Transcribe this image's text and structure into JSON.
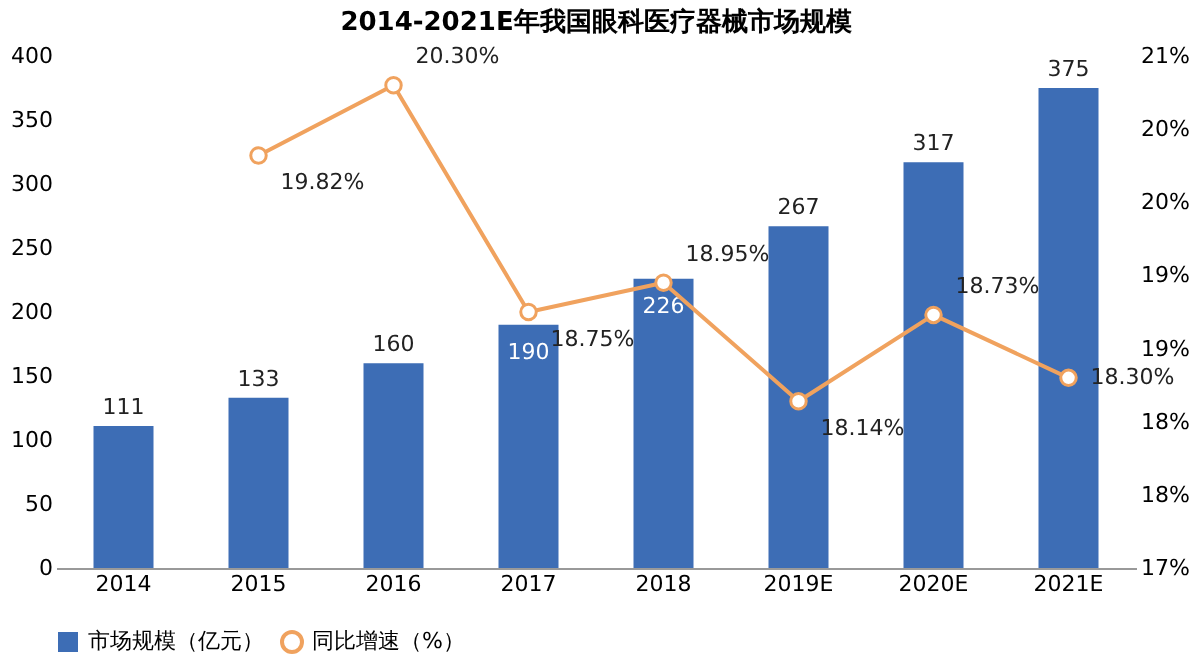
{
  "chart_data": {
    "type": "bar",
    "title": "2014-2021E年我国眼科医疗器械市场规模",
    "categories": [
      "2014",
      "2015",
      "2016",
      "2017",
      "2018",
      "2019E",
      "2020E",
      "2021E"
    ],
    "series": [
      {
        "name": "市场规模（亿元）",
        "color": "#3d6db5",
        "values": [
          111,
          133,
          160,
          190,
          226,
          267,
          317,
          375
        ],
        "data_labels": true
      },
      {
        "name": "同比增速（%）",
        "type": "line",
        "axis": "y2",
        "color": "#f0a25e",
        "marker": "circle",
        "values": [
          null,
          19.82,
          20.3,
          18.75,
          18.95,
          18.14,
          18.73,
          18.3
        ],
        "value_labels": [
          null,
          "19.82%",
          "20.30%",
          "18.75%",
          "18.95%",
          "18.14%",
          "18.73%",
          "18.30%"
        ]
      }
    ],
    "ylim": [
      0,
      400
    ],
    "yticks": [
      0,
      50,
      100,
      150,
      200,
      250,
      300,
      350,
      400
    ],
    "y2lim": [
      17,
      20.5
    ],
    "y2ticks": [
      {
        "value": 17,
        "label": "17%"
      },
      {
        "value": 17.5,
        "label": "18%"
      },
      {
        "value": 18,
        "label": "18%"
      },
      {
        "value": 18.5,
        "label": "19%"
      },
      {
        "value": 19,
        "label": "19%"
      },
      {
        "value": 19.5,
        "label": "20%"
      },
      {
        "value": 20,
        "label": "20%"
      },
      {
        "value": 20.5,
        "label": "21%"
      }
    ],
    "grid": false,
    "legend": "bottom"
  }
}
